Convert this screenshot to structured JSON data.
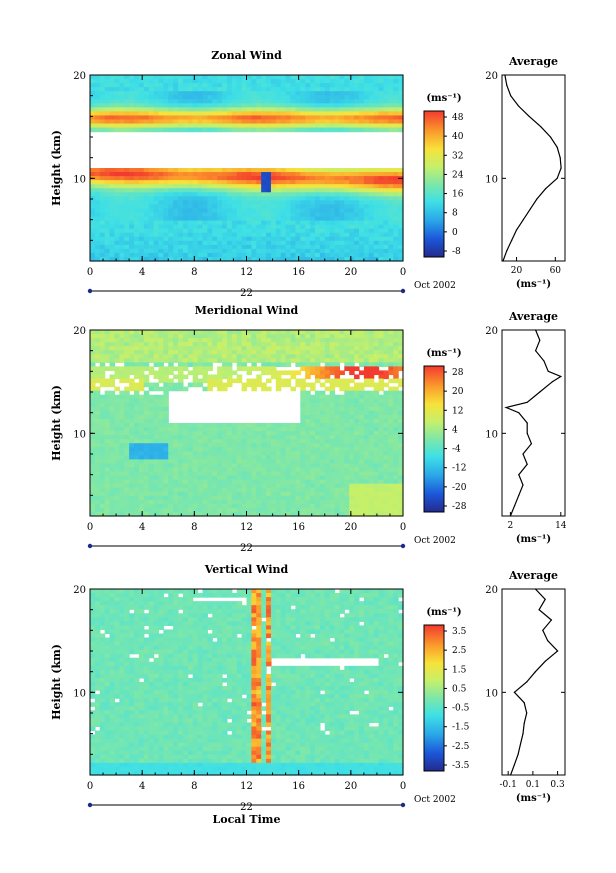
{
  "chart_data": [
    {
      "type": "heatmap",
      "title": "Zonal Wind",
      "ylabel": "Height (km)",
      "xlabel": "",
      "xlim": [
        0,
        24
      ],
      "ylim": [
        2,
        20
      ],
      "xticks": [
        "0",
        "4",
        "8",
        "12",
        "16",
        "20",
        "0"
      ],
      "yticks": [
        "10",
        "20"
      ],
      "date_label": "22",
      "date_suffix": "Oct 2002",
      "unit": "(ms⁻¹)",
      "colorbar_ticks": [
        "48",
        "40",
        "32",
        "24",
        "16",
        "8",
        "0",
        "-8"
      ],
      "colorbar_range": [
        -8,
        52
      ],
      "profile": {
        "title": "Average",
        "xticks": [
          "20",
          "60"
        ],
        "xlim": [
          5,
          70
        ],
        "xunit": "(ms⁻¹)",
        "yticks": [
          "10",
          "20"
        ],
        "points": [
          [
            6,
            2
          ],
          [
            10,
            3
          ],
          [
            15,
            4
          ],
          [
            20,
            5
          ],
          [
            27,
            6
          ],
          [
            34,
            7
          ],
          [
            41,
            8
          ],
          [
            50,
            9
          ],
          [
            62,
            10
          ],
          [
            66,
            11
          ],
          [
            65,
            12
          ],
          [
            62,
            13
          ],
          [
            55,
            14
          ],
          [
            45,
            15
          ],
          [
            33,
            16
          ],
          [
            22,
            17
          ],
          [
            14,
            18
          ],
          [
            10,
            19
          ],
          [
            8,
            20
          ]
        ]
      }
    },
    {
      "type": "heatmap",
      "title": "Meridional Wind",
      "ylabel": "Height (km)",
      "xlabel": "",
      "xlim": [
        0,
        24
      ],
      "ylim": [
        2,
        20
      ],
      "xticks": [
        "0",
        "4",
        "8",
        "12",
        "16",
        "20",
        "0"
      ],
      "yticks": [
        "10",
        "20"
      ],
      "date_label": "22",
      "date_suffix": "Oct 2002",
      "unit": "(ms⁻¹)",
      "colorbar_ticks": [
        "28",
        "20",
        "12",
        "4",
        "-4",
        "-12",
        "-20",
        "-28"
      ],
      "colorbar_range": [
        -32,
        32
      ],
      "profile": {
        "title": "Average",
        "xticks": [
          "2",
          "14"
        ],
        "xlim": [
          0,
          15
        ],
        "xunit": "(ms⁻¹)",
        "yticks": [
          "10",
          "20"
        ],
        "points": [
          [
            2,
            2
          ],
          [
            3,
            3
          ],
          [
            4,
            4
          ],
          [
            5,
            5
          ],
          [
            4,
            6
          ],
          [
            6,
            7
          ],
          [
            5,
            8
          ],
          [
            7,
            9
          ],
          [
            6,
            10
          ],
          [
            6,
            11
          ],
          [
            4,
            12
          ],
          [
            1,
            12.5
          ],
          [
            6,
            13
          ],
          [
            9,
            14
          ],
          [
            12,
            15
          ],
          [
            14,
            15.5
          ],
          [
            11,
            16
          ],
          [
            10,
            17
          ],
          [
            8,
            18
          ],
          [
            9,
            19
          ],
          [
            8,
            20
          ]
        ]
      }
    },
    {
      "type": "heatmap",
      "title": "Vertical Wind",
      "ylabel": "Height (km)",
      "xlabel": "Local Time",
      "xlim": [
        0,
        24
      ],
      "ylim": [
        2,
        20
      ],
      "xticks": [
        "0",
        "4",
        "8",
        "12",
        "16",
        "20",
        "0"
      ],
      "yticks": [
        "10",
        "20"
      ],
      "date_label": "22",
      "date_suffix": "Oct 2002",
      "unit": "(ms⁻¹)",
      "colorbar_ticks": [
        "3.5",
        "2.5",
        "1.5",
        "0.5",
        "-0.5",
        "-1.5",
        "-2.5",
        "-3.5"
      ],
      "colorbar_range": [
        -4,
        4
      ],
      "profile": {
        "title": "Average",
        "xticks": [
          "-0.1",
          "0.1",
          "0.3"
        ],
        "xlim": [
          -0.15,
          0.36
        ],
        "xunit": "(ms⁻¹)",
        "yticks": [
          "10",
          "20"
        ],
        "points": [
          [
            -0.08,
            2
          ],
          [
            -0.05,
            3
          ],
          [
            -0.02,
            4
          ],
          [
            0,
            5
          ],
          [
            0.02,
            6
          ],
          [
            0.03,
            7
          ],
          [
            0.05,
            8
          ],
          [
            0.03,
            9
          ],
          [
            -0.05,
            10
          ],
          [
            0.05,
            11
          ],
          [
            0.12,
            12
          ],
          [
            0.2,
            13
          ],
          [
            0.3,
            14
          ],
          [
            0.22,
            15
          ],
          [
            0.18,
            16
          ],
          [
            0.25,
            17
          ],
          [
            0.15,
            18
          ],
          [
            0.2,
            19
          ],
          [
            0.12,
            20
          ]
        ]
      }
    }
  ]
}
